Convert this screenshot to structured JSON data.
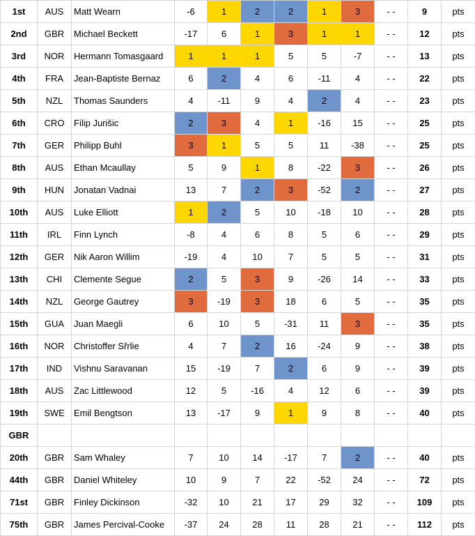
{
  "colors": {
    "y": "#FFD700",
    "b": "#6F94CB",
    "o": "#E06B3F"
  },
  "dash": "- -",
  "pts_label": "pts",
  "section_label": "GBR",
  "rows": [
    {
      "rank": "1st",
      "nat": "AUS",
      "name": "Matt Wearn",
      "races": [
        [
          "-6",
          ""
        ],
        [
          "1",
          "y"
        ],
        [
          "2",
          "b"
        ],
        [
          "2",
          "b"
        ],
        [
          "1",
          "y"
        ],
        [
          "3",
          "o"
        ]
      ],
      "total": "9"
    },
    {
      "rank": "2nd",
      "nat": "GBR",
      "name": "Michael Beckett",
      "races": [
        [
          "-17",
          ""
        ],
        [
          "6",
          ""
        ],
        [
          "1",
          "y"
        ],
        [
          "3",
          "o"
        ],
        [
          "1",
          "y"
        ],
        [
          "1",
          "y"
        ]
      ],
      "total": "12"
    },
    {
      "rank": "3rd",
      "nat": "NOR",
      "name": "Hermann Tomasgaard",
      "races": [
        [
          "1",
          "y"
        ],
        [
          "1",
          "y"
        ],
        [
          "1",
          "y"
        ],
        [
          "5",
          ""
        ],
        [
          "5",
          ""
        ],
        [
          "-7",
          ""
        ]
      ],
      "total": "13"
    },
    {
      "rank": "4th",
      "nat": "FRA",
      "name": "Jean-Baptiste Bernaz",
      "races": [
        [
          "6",
          ""
        ],
        [
          "2",
          "b"
        ],
        [
          "4",
          ""
        ],
        [
          "6",
          ""
        ],
        [
          "-11",
          ""
        ],
        [
          "4",
          ""
        ]
      ],
      "total": "22"
    },
    {
      "rank": "5th",
      "nat": "NZL",
      "name": "Thomas Saunders",
      "races": [
        [
          "4",
          ""
        ],
        [
          "-11",
          ""
        ],
        [
          "9",
          ""
        ],
        [
          "4",
          ""
        ],
        [
          "2",
          "b"
        ],
        [
          "4",
          ""
        ]
      ],
      "total": "23"
    },
    {
      "rank": "6th",
      "nat": "CRO",
      "name": "Filip Jurišic",
      "races": [
        [
          "2",
          "b"
        ],
        [
          "3",
          "o"
        ],
        [
          "4",
          ""
        ],
        [
          "1",
          "y"
        ],
        [
          "-16",
          ""
        ],
        [
          "15",
          ""
        ]
      ],
      "total": "25"
    },
    {
      "rank": "7th",
      "nat": "GER",
      "name": "Philipp Buhl",
      "races": [
        [
          "3",
          "o"
        ],
        [
          "1",
          "y"
        ],
        [
          "5",
          ""
        ],
        [
          "5",
          ""
        ],
        [
          "11",
          ""
        ],
        [
          "-38",
          ""
        ]
      ],
      "total": "25"
    },
    {
      "rank": "8th",
      "nat": "AUS",
      "name": "Ethan Mcaullay",
      "races": [
        [
          "5",
          ""
        ],
        [
          "9",
          ""
        ],
        [
          "1",
          "y"
        ],
        [
          "8",
          ""
        ],
        [
          "-22",
          ""
        ],
        [
          "3",
          "o"
        ]
      ],
      "total": "26"
    },
    {
      "rank": "9th",
      "nat": "HUN",
      "name": "Jonatan Vadnai",
      "races": [
        [
          "13",
          ""
        ],
        [
          "7",
          ""
        ],
        [
          "2",
          "b"
        ],
        [
          "3",
          "o"
        ],
        [
          "-52",
          ""
        ],
        [
          "2",
          "b"
        ]
      ],
      "total": "27"
    },
    {
      "rank": "10th",
      "nat": "AUS",
      "name": "Luke Elliott",
      "races": [
        [
          "1",
          "y"
        ],
        [
          "2",
          "b"
        ],
        [
          "5",
          ""
        ],
        [
          "10",
          ""
        ],
        [
          "-18",
          ""
        ],
        [
          "10",
          ""
        ]
      ],
      "total": "28"
    },
    {
      "rank": "11th",
      "nat": "IRL",
      "name": "Finn Lynch",
      "races": [
        [
          "-8",
          ""
        ],
        [
          "4",
          ""
        ],
        [
          "6",
          ""
        ],
        [
          "8",
          ""
        ],
        [
          "5",
          ""
        ],
        [
          "6",
          ""
        ]
      ],
      "total": "29"
    },
    {
      "rank": "12th",
      "nat": "GER",
      "name": "Nik Aaron Willim",
      "races": [
        [
          "-19",
          ""
        ],
        [
          "4",
          ""
        ],
        [
          "10",
          ""
        ],
        [
          "7",
          ""
        ],
        [
          "5",
          ""
        ],
        [
          "5",
          ""
        ]
      ],
      "total": "31"
    },
    {
      "rank": "13th",
      "nat": "CHI",
      "name": "Clemente Segue",
      "races": [
        [
          "2",
          "b"
        ],
        [
          "5",
          ""
        ],
        [
          "3",
          "o"
        ],
        [
          "9",
          ""
        ],
        [
          "-26",
          ""
        ],
        [
          "14",
          ""
        ]
      ],
      "total": "33"
    },
    {
      "rank": "14th",
      "nat": "NZL",
      "name": "George Gautrey",
      "races": [
        [
          "3",
          "o"
        ],
        [
          "-19",
          ""
        ],
        [
          "3",
          "o"
        ],
        [
          "18",
          ""
        ],
        [
          "6",
          ""
        ],
        [
          "5",
          ""
        ]
      ],
      "total": "35"
    },
    {
      "rank": "15th",
      "nat": "GUA",
      "name": "Juan Maegli",
      "races": [
        [
          "6",
          ""
        ],
        [
          "10",
          ""
        ],
        [
          "5",
          ""
        ],
        [
          "-31",
          ""
        ],
        [
          "11",
          ""
        ],
        [
          "3",
          "o"
        ]
      ],
      "total": "35"
    },
    {
      "rank": "16th",
      "nat": "NOR",
      "name": "Christoffer Sřrlie",
      "races": [
        [
          "4",
          ""
        ],
        [
          "7",
          ""
        ],
        [
          "2",
          "b"
        ],
        [
          "16",
          ""
        ],
        [
          "-24",
          ""
        ],
        [
          "9",
          ""
        ]
      ],
      "total": "38"
    },
    {
      "rank": "17th",
      "nat": "IND",
      "name": "Vishnu Saravanan",
      "races": [
        [
          "15",
          ""
        ],
        [
          "-19",
          ""
        ],
        [
          "7",
          ""
        ],
        [
          "2",
          "b"
        ],
        [
          "6",
          ""
        ],
        [
          "9",
          ""
        ]
      ],
      "total": "39"
    },
    {
      "rank": "18th",
      "nat": "AUS",
      "name": "Zac Littlewood",
      "races": [
        [
          "12",
          ""
        ],
        [
          "5",
          ""
        ],
        [
          "-16",
          ""
        ],
        [
          "4",
          ""
        ],
        [
          "12",
          ""
        ],
        [
          "6",
          ""
        ]
      ],
      "total": "39"
    },
    {
      "rank": "19th",
      "nat": "SWE",
      "name": "Emil Bengtson",
      "races": [
        [
          "13",
          ""
        ],
        [
          "-17",
          ""
        ],
        [
          "9",
          ""
        ],
        [
          "1",
          "y"
        ],
        [
          "9",
          ""
        ],
        [
          "8",
          ""
        ]
      ],
      "total": "40"
    },
    {
      "section": true
    },
    {
      "rank": "20th",
      "nat": "GBR",
      "name": "Sam Whaley",
      "races": [
        [
          "7",
          ""
        ],
        [
          "10",
          ""
        ],
        [
          "14",
          ""
        ],
        [
          "-17",
          ""
        ],
        [
          "7",
          ""
        ],
        [
          "2",
          "b"
        ]
      ],
      "total": "40"
    },
    {
      "rank": "44th",
      "nat": "GBR",
      "name": "Daniel Whiteley",
      "races": [
        [
          "10",
          ""
        ],
        [
          "9",
          ""
        ],
        [
          "7",
          ""
        ],
        [
          "22",
          ""
        ],
        [
          "-52",
          ""
        ],
        [
          "24",
          ""
        ]
      ],
      "total": "72"
    },
    {
      "rank": "71st",
      "nat": "GBR",
      "name": "Finley Dickinson",
      "races": [
        [
          "-32",
          ""
        ],
        [
          "10",
          ""
        ],
        [
          "21",
          ""
        ],
        [
          "17",
          ""
        ],
        [
          "29",
          ""
        ],
        [
          "32",
          ""
        ]
      ],
      "total": "109"
    },
    {
      "rank": "75th",
      "nat": "GBR",
      "name": "James Percival-Cooke",
      "races": [
        [
          "-37",
          ""
        ],
        [
          "24",
          ""
        ],
        [
          "28",
          ""
        ],
        [
          "11",
          ""
        ],
        [
          "28",
          ""
        ],
        [
          "21",
          ""
        ]
      ],
      "total": "112"
    }
  ]
}
